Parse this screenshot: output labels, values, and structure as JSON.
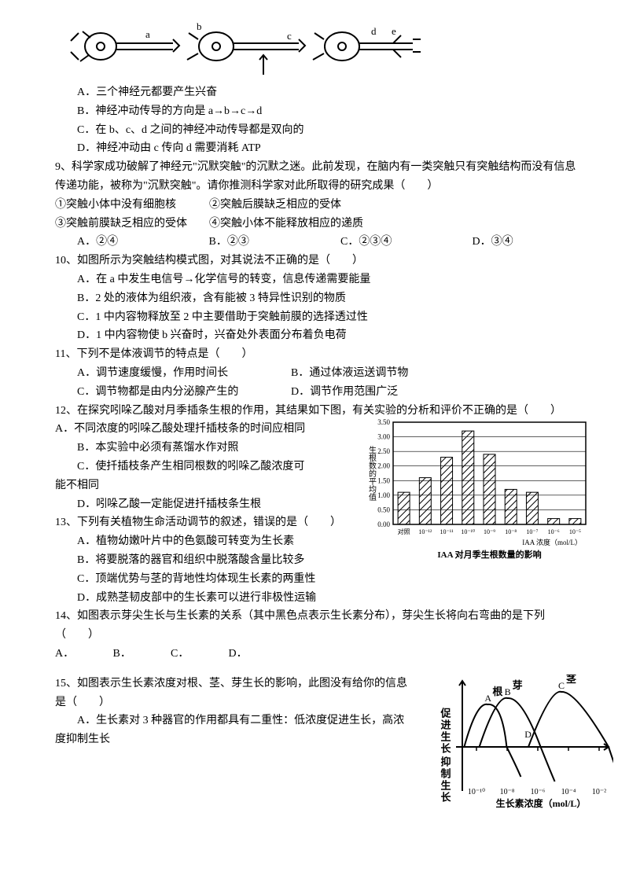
{
  "neuron_diagram": {
    "labels": [
      "a",
      "b",
      "c",
      "d",
      "e"
    ],
    "stroke": "#000000"
  },
  "q8_opts": {
    "A": "A．三个神经元都要产生兴奋",
    "B": "B．神经冲动传导的方向是 a→b→c→d",
    "C": "C．在 b、c、d 之间的神经冲动传导都是双向的",
    "D": "D．神经冲动由 c 传向 d 需要消耗 ATP"
  },
  "q9": {
    "stem1": "9、科学家成功破解了神经元\"沉默突触\"的沉默之迷。此前发现，在脑内有一类突触只有突触结构而没有信息传递功能，被称为\"沉默突触\"。请你推测科学家对此所取得的研究成果（　　）",
    "sub1": "①突触小体中没有细胞核　　　②突触后膜缺乏相应的受体",
    "sub2": "③突触前膜缺乏相应的受体　　④突触小体不能释放相应的递质",
    "opts": {
      "A": "A．②④",
      "B": "B．②③",
      "C": "C．②③④",
      "D": "D．③④"
    }
  },
  "q10": {
    "stem": "10、如图所示为突触结构模式图，对其说法不正确的是（　　）",
    "A": "A．在 a 中发生电信号→化学信号的转变，信息传递需要能量",
    "B": "B．2 处的液体为组织液，含有能被 3 特异性识别的物质",
    "C": "C．1 中内容物释放至 2 中主要借助于突触前膜的选择透过性",
    "D": "D．1 中内容物使 b 兴奋时，兴奋处外表面分布着负电荷"
  },
  "q11": {
    "stem": "11、下列不是体液调节的特点是（　　）",
    "A": "A．调节速度缓慢，作用时间长",
    "B": "B．通过体液运送调节物",
    "C": "C．调节物都是由内分泌腺产生的",
    "D": "D．调节作用范围广泛"
  },
  "q12": {
    "stem": "12、在探究吲哚乙酸对月季插条生根的作用，其结果如下图，有关实验的分析和评价不正确的是（　　）",
    "A": "A．不同浓度的吲哚乙酸处理扦插枝条的时间应相同",
    "B": "B．本实验中必须有蒸馏水作对照",
    "C": "C．使扦插枝条产生相同根数的吲哚乙酸浓度可能不相同",
    "D": "D．吲哚乙酸一定能促进扦插枝条生根",
    "chart": {
      "type": "bar",
      "ylabel": "生根数的平均值",
      "xlabel": "IAA 浓度（mol/L）",
      "caption": "IAA 对月季生根数量的影响",
      "categories": [
        "对照",
        "10⁻¹²",
        "10⁻¹¹",
        "10⁻¹⁰",
        "10⁻⁹",
        "10⁻⁸",
        "10⁻⁷",
        "10⁻⁶",
        "10⁻⁵"
      ],
      "values": [
        1.1,
        1.6,
        2.3,
        3.2,
        2.4,
        1.2,
        1.1,
        0.2,
        0.2
      ],
      "ylim": [
        0,
        3.5
      ],
      "ytick_step": 0.5,
      "bar_fill": "#ffffff",
      "bar_hatch": true,
      "axis_color": "#000000",
      "background_color": "#ffffff",
      "label_fontsize": 9
    }
  },
  "q13": {
    "stem": "13、下列有关植物生命活动调节的叙述，错误的是（　　）",
    "A": "A．植物幼嫩叶片中的色氨酸可转变为生长素",
    "B": "B．将要脱落的器官和组织中脱落酸含量比较多",
    "C": "C．顶端优势与茎的背地性均体现生长素的两重性",
    "D": "D．成熟茎韧皮部中的生长素可以进行非极性运输"
  },
  "q14": {
    "stem": "14、如图表示芽尖生长与生长素的关系（其中黑色点表示生长素分布），芽尖生长将向右弯曲的是下列（　　）",
    "opts": {
      "A": "A．",
      "B": "B．",
      "C": "C．",
      "D": "D．"
    }
  },
  "q15": {
    "stem": "15、如图表示生长素浓度对根、茎、芽生长的影响，此图没有给你的信息是（　　）",
    "A": "A．生长素对 3 种器官的作用都具有二重性：低浓度促进生长，高浓度抑制生长",
    "chart": {
      "type": "line",
      "ylabel_top": "促进生长",
      "ylabel_bottom": "抑制生长",
      "xlabel": "生长素浓度（mol/L）",
      "xticks": [
        "10⁻¹⁰",
        "10⁻⁸",
        "10⁻⁶",
        "10⁻⁴",
        "10⁻²"
      ],
      "series": [
        {
          "name": "根",
          "label_point": "A",
          "peak_x": 0.18
        },
        {
          "name": "芽",
          "label_point": "B",
          "peak_x": 0.32
        },
        {
          "name": "茎",
          "label_point": "C",
          "peak_x": 0.7
        }
      ],
      "extra_label": "D",
      "stroke": "#000000",
      "stroke_width": 2,
      "background_color": "#ffffff"
    }
  }
}
